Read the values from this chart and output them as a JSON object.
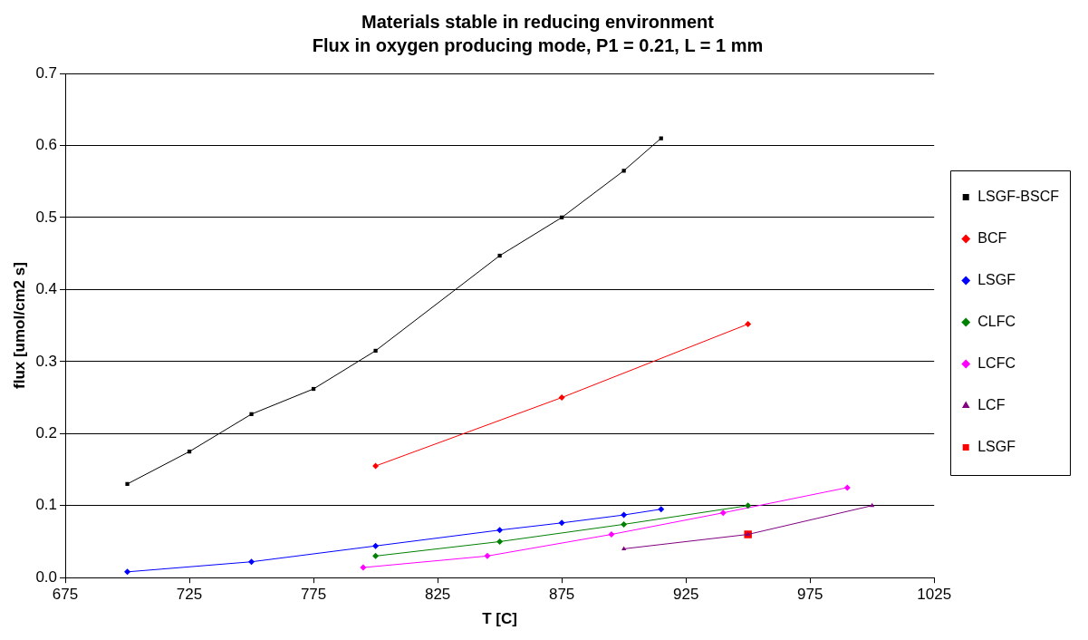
{
  "chart_data": {
    "type": "line",
    "title": "Materials stable in reducing environment",
    "subtitle": "Flux in oxygen producing mode, P1 = 0.21, L = 1 mm",
    "xlabel": "T [C]",
    "ylabel": "flux [umol/cm2 s]",
    "xlim": [
      675,
      1025
    ],
    "xticks": [
      675,
      725,
      775,
      825,
      875,
      925,
      975,
      1025
    ],
    "ylim": [
      0,
      0.7
    ],
    "yticks": [
      {
        "value": 0,
        "label": "0.0"
      },
      0.1,
      0.2,
      0.3,
      0.4,
      0.5,
      0.6,
      0.7
    ],
    "grid": "y",
    "legend": "right",
    "line_style": "solid",
    "series": [
      {
        "name": "LSGF-BSCF",
        "color": "#000000",
        "marker": "square",
        "x": [
          700,
          725,
          750,
          775,
          800,
          850,
          875,
          900,
          915
        ],
        "values": [
          0.13,
          0.175,
          0.227,
          0.262,
          0.315,
          0.447,
          0.5,
          0.565,
          0.61
        ]
      },
      {
        "name": "BCF",
        "color": "#ff0000",
        "marker": "diamond",
        "x": [
          800,
          875,
          950
        ],
        "values": [
          0.155,
          0.25,
          0.352
        ]
      },
      {
        "name": "LSGF",
        "color": "#0000ff",
        "marker": "diamond",
        "x": [
          700,
          750,
          800,
          850,
          875,
          900,
          915
        ],
        "values": [
          0.008,
          0.022,
          0.044,
          0.066,
          0.076,
          0.087,
          0.095
        ]
      },
      {
        "name": "CLFC",
        "color": "#008000",
        "marker": "diamond",
        "x": [
          800,
          850,
          900,
          950
        ],
        "values": [
          0.03,
          0.05,
          0.074,
          0.1
        ]
      },
      {
        "name": "LCFC",
        "color": "#ff00ff",
        "marker": "diamond",
        "x": [
          795,
          845,
          895,
          940,
          990
        ],
        "values": [
          0.014,
          0.03,
          0.06,
          0.09,
          0.125
        ]
      },
      {
        "name": "LCF",
        "color": "#800080",
        "marker": "triangle",
        "x": [
          900,
          950,
          1000
        ],
        "values": [
          0.04,
          0.06,
          0.1
        ]
      },
      {
        "name": "LSGF",
        "color": "#ff0000",
        "marker": "square",
        "x": [
          950
        ],
        "values": [
          0.06
        ]
      }
    ]
  }
}
